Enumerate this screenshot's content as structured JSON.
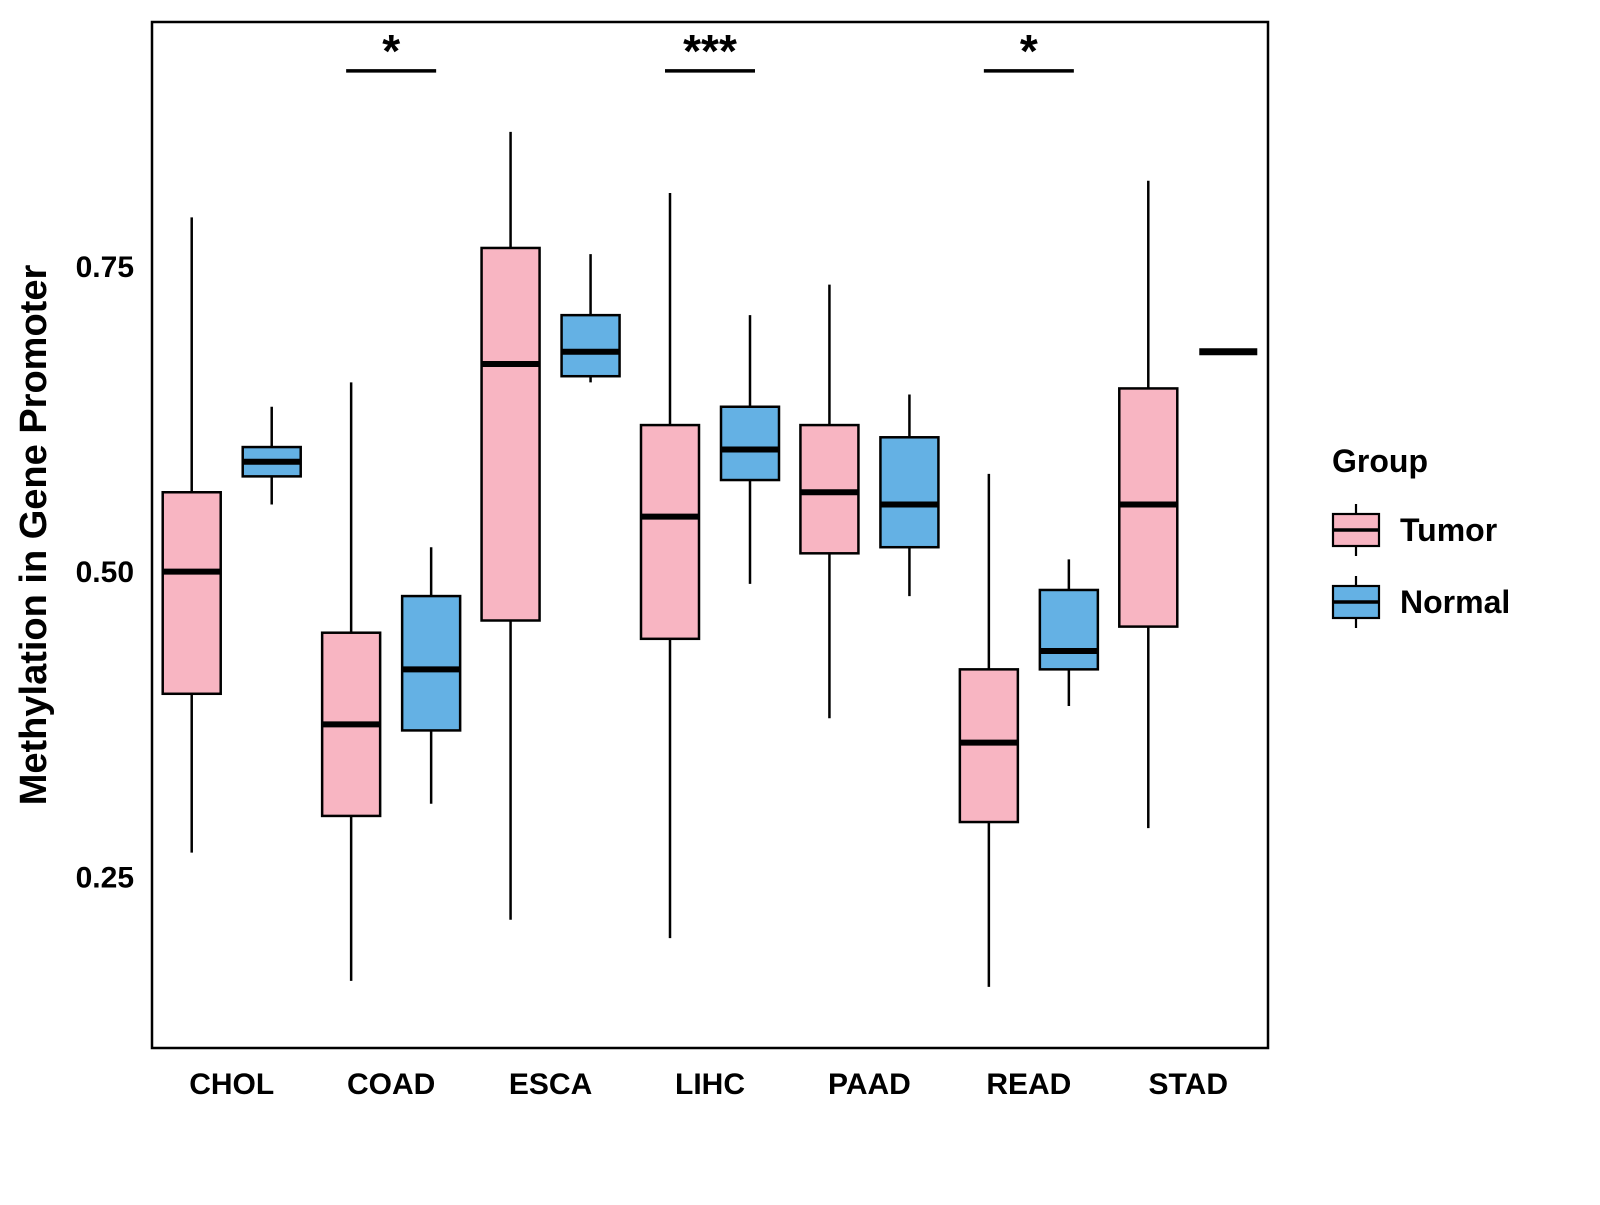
{
  "chart_data": {
    "type": "boxplot",
    "title": "",
    "xlabel": "",
    "ylabel": "Methylation in Gene Promoter",
    "ylim": [
      0.11,
      0.95
    ],
    "yticks": [
      0.25,
      0.5,
      0.75
    ],
    "ytick_labels": [
      "0.25",
      "0.50",
      "0.75"
    ],
    "grid": false,
    "categories": [
      "CHOL",
      "COAD",
      "ESCA",
      "LIHC",
      "PAAD",
      "READ",
      "STAD"
    ],
    "groups": [
      {
        "name": "Tumor",
        "color": "#F8B5C2"
      },
      {
        "name": "Normal",
        "color": "#64B1E4"
      }
    ],
    "series": [
      {
        "name": "Tumor",
        "boxes": [
          {
            "category": "CHOL",
            "low": 0.27,
            "q1": 0.4,
            "median": 0.5,
            "q3": 0.565,
            "high": 0.79
          },
          {
            "category": "COAD",
            "low": 0.165,
            "q1": 0.3,
            "median": 0.375,
            "q3": 0.45,
            "high": 0.655
          },
          {
            "category": "ESCA",
            "low": 0.215,
            "q1": 0.46,
            "median": 0.67,
            "q3": 0.765,
            "high": 0.86
          },
          {
            "category": "LIHC",
            "low": 0.2,
            "q1": 0.445,
            "median": 0.545,
            "q3": 0.62,
            "high": 0.81
          },
          {
            "category": "PAAD",
            "low": 0.38,
            "q1": 0.515,
            "median": 0.565,
            "q3": 0.62,
            "high": 0.735
          },
          {
            "category": "READ",
            "low": 0.16,
            "q1": 0.295,
            "median": 0.36,
            "q3": 0.42,
            "high": 0.58
          },
          {
            "category": "STAD",
            "low": 0.29,
            "q1": 0.455,
            "median": 0.555,
            "q3": 0.65,
            "high": 0.82
          }
        ]
      },
      {
        "name": "Normal",
        "boxes": [
          {
            "category": "CHOL",
            "low": 0.555,
            "q1": 0.578,
            "median": 0.59,
            "q3": 0.602,
            "high": 0.635
          },
          {
            "category": "COAD",
            "low": 0.31,
            "q1": 0.37,
            "median": 0.42,
            "q3": 0.48,
            "high": 0.52
          },
          {
            "category": "ESCA",
            "low": 0.655,
            "q1": 0.66,
            "median": 0.68,
            "q3": 0.71,
            "high": 0.76
          },
          {
            "category": "LIHC",
            "low": 0.49,
            "q1": 0.575,
            "median": 0.6,
            "q3": 0.635,
            "high": 0.71
          },
          {
            "category": "PAAD",
            "low": 0.48,
            "q1": 0.52,
            "median": 0.555,
            "q3": 0.61,
            "high": 0.645
          },
          {
            "category": "READ",
            "low": 0.39,
            "q1": 0.42,
            "median": 0.435,
            "q3": 0.485,
            "high": 0.51
          },
          {
            "category": "STAD",
            "single": 0.68
          }
        ]
      }
    ],
    "annotations": [
      {
        "category": "COAD",
        "label": "*",
        "y": 0.91
      },
      {
        "category": "LIHC",
        "label": "***",
        "y": 0.91
      },
      {
        "category": "READ",
        "label": "*",
        "y": 0.91
      }
    ],
    "legend": {
      "title": "Group",
      "position": "right",
      "entries": [
        "Tumor",
        "Normal"
      ]
    },
    "style": {
      "box_stroke": "#000000",
      "panel_border": "#000000",
      "background": "#ffffff"
    }
  }
}
